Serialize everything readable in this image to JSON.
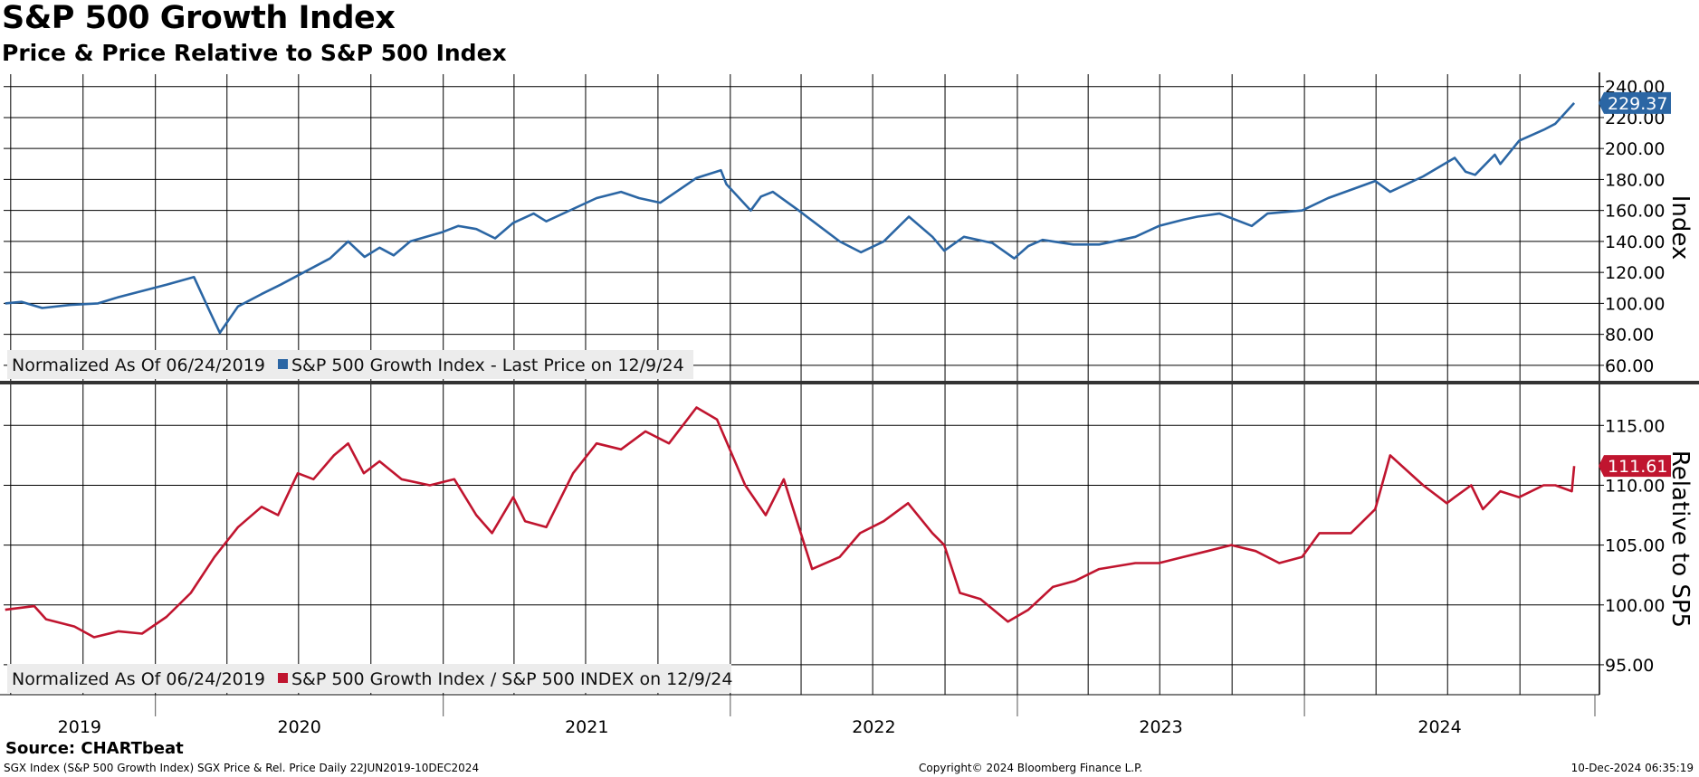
{
  "title": "S&P 500 Growth Index",
  "subtitle": "Price & Price Relative to S&P 500 Index",
  "source": "Source: CHARTbeat",
  "footer": {
    "left": "SGX Index (S&P 500 Growth Index) SGX Price & Rel. Price  Daily 22JUN2019-10DEC2024",
    "center": "Copyright© 2024 Bloomberg Finance L.P.",
    "right": "10-Dec-2024 06:35:19"
  },
  "colors": {
    "price": "#2b66a4",
    "relative": "#c0152f",
    "grid": "#000000",
    "background": "#ffffff"
  },
  "chart_data": [
    {
      "type": "line",
      "panel": "upper",
      "ylabel": "Index",
      "ylim": [
        50,
        248
      ],
      "yticks": [
        60,
        80,
        100,
        120,
        140,
        160,
        180,
        200,
        220,
        240
      ],
      "ytick_labels": [
        "60.00",
        "80.00",
        "100.00",
        "120.00",
        "140.00",
        "160.00",
        "180.00",
        "200.00",
        "220.00",
        "240.00"
      ],
      "legend_label": "Normalized As Of 06/24/2019",
      "series": [
        {
          "name": "S&P 500 Growth Index - Last Price on 12/9/24",
          "last_value_label": "229.37",
          "x": [
            "2019-06-24",
            "2019-07-15",
            "2019-08-10",
            "2019-09-15",
            "2019-10-20",
            "2019-11-15",
            "2019-12-15",
            "2020-01-15",
            "2020-02-19",
            "2020-03-10",
            "2020-03-23",
            "2020-04-15",
            "2020-05-15",
            "2020-06-08",
            "2020-07-15",
            "2020-08-10",
            "2020-09-02",
            "2020-09-23",
            "2020-10-12",
            "2020-10-30",
            "2020-11-20",
            "2020-12-31",
            "2021-01-20",
            "2021-02-12",
            "2021-03-08",
            "2021-03-31",
            "2021-04-26",
            "2021-05-12",
            "2021-06-15",
            "2021-07-15",
            "2021-08-15",
            "2021-09-07",
            "2021-10-04",
            "2021-11-19",
            "2021-12-20",
            "2021-12-27",
            "2022-01-27",
            "2022-02-09",
            "2022-02-24",
            "2022-03-29",
            "2022-05-20",
            "2022-06-16",
            "2022-07-15",
            "2022-08-16",
            "2022-09-15",
            "2022-09-30",
            "2022-10-25",
            "2022-11-30",
            "2022-12-28",
            "2023-01-15",
            "2023-02-02",
            "2023-03-13",
            "2023-04-15",
            "2023-05-31",
            "2023-06-30",
            "2023-07-31",
            "2023-08-18",
            "2023-09-15",
            "2023-10-26",
            "2023-11-15",
            "2023-12-29",
            "2024-01-31",
            "2024-03-31",
            "2024-04-19",
            "2024-05-31",
            "2024-07-10",
            "2024-07-24",
            "2024-08-05",
            "2024-08-30",
            "2024-09-06",
            "2024-09-30",
            "2024-10-31",
            "2024-11-15",
            "2024-12-09"
          ],
          "y": [
            100,
            101,
            97,
            99,
            100,
            104,
            108,
            112,
            117,
            95,
            81,
            98,
            106,
            112,
            122,
            129,
            140,
            130,
            136,
            131,
            140,
            146,
            150,
            148,
            142,
            152,
            158,
            153,
            161,
            168,
            172,
            168,
            165,
            181,
            186,
            177,
            160,
            169,
            172,
            160,
            140,
            133,
            140,
            156,
            143,
            134,
            143,
            139,
            129,
            137,
            141,
            138,
            138,
            143,
            150,
            154,
            156,
            158,
            150,
            158,
            160,
            168,
            179,
            172,
            182,
            194,
            185,
            183,
            196,
            190,
            205,
            212,
            216,
            229.37
          ]
        }
      ]
    },
    {
      "type": "line",
      "panel": "lower",
      "ylabel": "Relative to SP5",
      "ylim": [
        92.5,
        118.5
      ],
      "yticks": [
        95,
        100,
        105,
        110,
        115
      ],
      "ytick_labels": [
        "95.00",
        "100.00",
        "105.00",
        "110.00",
        "115.00"
      ],
      "legend_label": "Normalized As Of 06/24/2019",
      "series": [
        {
          "name": "S&P 500 Growth Index / S&P 500 INDEX on 12/9/24",
          "last_value_label": "111.61",
          "x": [
            "2019-06-24",
            "2019-07-31",
            "2019-08-15",
            "2019-09-20",
            "2019-10-15",
            "2019-11-15",
            "2019-12-15",
            "2020-01-15",
            "2020-02-15",
            "2020-03-16",
            "2020-04-15",
            "2020-05-15",
            "2020-06-05",
            "2020-06-30",
            "2020-07-20",
            "2020-08-15",
            "2020-09-02",
            "2020-09-22",
            "2020-10-12",
            "2020-11-09",
            "2020-12-15",
            "2021-01-15",
            "2021-02-12",
            "2021-03-04",
            "2021-03-31",
            "2021-04-15",
            "2021-05-12",
            "2021-06-15",
            "2021-07-15",
            "2021-08-15",
            "2021-09-15",
            "2021-10-15",
            "2021-11-19",
            "2021-12-15",
            "2022-01-20",
            "2022-02-15",
            "2022-03-10",
            "2022-04-15",
            "2022-05-20",
            "2022-06-15",
            "2022-07-15",
            "2022-08-15",
            "2022-09-15",
            "2022-09-30",
            "2022-10-20",
            "2022-11-15",
            "2022-12-20",
            "2023-01-15",
            "2023-02-15",
            "2023-03-15",
            "2023-04-15",
            "2023-05-31",
            "2023-06-30",
            "2023-07-31",
            "2023-08-31",
            "2023-09-30",
            "2023-10-31",
            "2023-11-30",
            "2023-12-29",
            "2024-01-20",
            "2024-02-29",
            "2024-03-31",
            "2024-04-19",
            "2024-05-31",
            "2024-06-30",
            "2024-07-10",
            "2024-07-31",
            "2024-08-15",
            "2024-09-06",
            "2024-09-30",
            "2024-10-31",
            "2024-11-15",
            "2024-12-06",
            "2024-12-09"
          ],
          "y": [
            99.6,
            99.9,
            98.8,
            98.2,
            97.3,
            97.8,
            97.6,
            99.0,
            101.0,
            104.0,
            106.5,
            108.2,
            107.5,
            111.0,
            110.5,
            112.5,
            113.5,
            111.0,
            112.0,
            110.5,
            110.0,
            110.5,
            107.5,
            106.0,
            109.0,
            107.0,
            106.5,
            111.0,
            113.5,
            113.0,
            114.5,
            113.5,
            116.5,
            115.5,
            110.0,
            107.5,
            110.5,
            103.0,
            104.0,
            106.0,
            107.0,
            108.5,
            106.0,
            105.0,
            101.0,
            100.5,
            98.6,
            99.6,
            101.5,
            102.0,
            103.0,
            103.5,
            103.5,
            104.0,
            104.5,
            105.0,
            104.5,
            103.5,
            104.0,
            106.0,
            106.0,
            108.0,
            112.5,
            110.0,
            108.5,
            109.0,
            110.0,
            108.0,
            109.5,
            109.0,
            110.0,
            110.0,
            109.5,
            111.61
          ]
        }
      ]
    }
  ],
  "x_axis": {
    "year_labels": [
      "2019",
      "2020",
      "2021",
      "2022",
      "2023",
      "2024"
    ]
  }
}
